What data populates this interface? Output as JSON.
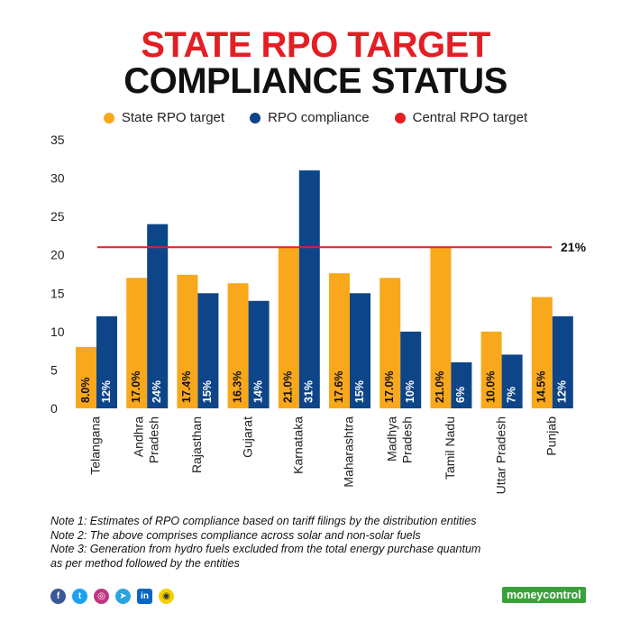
{
  "title_line1": "STATE RPO TARGET",
  "title_line2": "COMPLIANCE STATUS",
  "notes": [
    "Note 1: Estimates of RPO compliance based on tariff filings by the distribution entities",
    "Note 2: The above comprises compliance across solar and non-solar fuels",
    "Note 3: Generation from hydro fuels excluded from the total energy purchase quantum",
    "as per method followed by the entities"
  ],
  "brand": "moneycontrol",
  "social_icons": [
    "facebook-icon",
    "twitter-icon",
    "instagram-icon",
    "telegram-icon",
    "linkedin-icon",
    "snapchat-icon"
  ],
  "colors": {
    "target": "#f9a81b",
    "compliance": "#0d4588",
    "central": "#e31e24",
    "title_red": "#e31e24",
    "brand_green": "#3aa13a"
  },
  "chart_data": {
    "type": "bar",
    "title": "",
    "categories": [
      "Telangana",
      "Andhra Pradesh",
      "Rajasthan",
      "Gujarat",
      "Karnataka",
      "Maharashtra",
      "Madhya Pradesh",
      "Tamil Nadu",
      "Uttar Pradesh",
      "Punjab"
    ],
    "category_lines": [
      [
        "Telangana"
      ],
      [
        "Andhra",
        "Pradesh"
      ],
      [
        "Rajasthan"
      ],
      [
        "Gujarat"
      ],
      [
        "Karnataka"
      ],
      [
        "Maharashtra"
      ],
      [
        "Madhya",
        "Pradesh"
      ],
      [
        "Tamil Nadu"
      ],
      [
        "Uttar Pradesh"
      ],
      [
        "Punjab"
      ]
    ],
    "series": [
      {
        "name": "State RPO target",
        "values": [
          8.0,
          17.0,
          17.4,
          16.3,
          21.0,
          17.6,
          17.0,
          21.0,
          10.0,
          14.5
        ],
        "labels": [
          "8.0%",
          "17.0%",
          "17.4%",
          "16.3%",
          "21.0%",
          "17.6%",
          "17.0%",
          "21.0%",
          "10.0%",
          "14.5%"
        ]
      },
      {
        "name": "RPO compliance",
        "values": [
          12,
          24,
          15,
          14,
          31,
          15,
          10,
          6,
          7,
          12
        ],
        "labels": [
          "12%",
          "24%",
          "15%",
          "14%",
          "31%",
          "15%",
          "10%",
          "6%",
          "7%",
          "12%"
        ]
      }
    ],
    "reference_line": {
      "name": "Central RPO target",
      "value": 21,
      "label": "21%"
    },
    "yticks": [
      0,
      5,
      10,
      15,
      20,
      25,
      30,
      35
    ],
    "ylim": [
      0,
      35
    ],
    "xlabel": "",
    "ylabel": "",
    "grid": false,
    "legend": "top-center"
  }
}
